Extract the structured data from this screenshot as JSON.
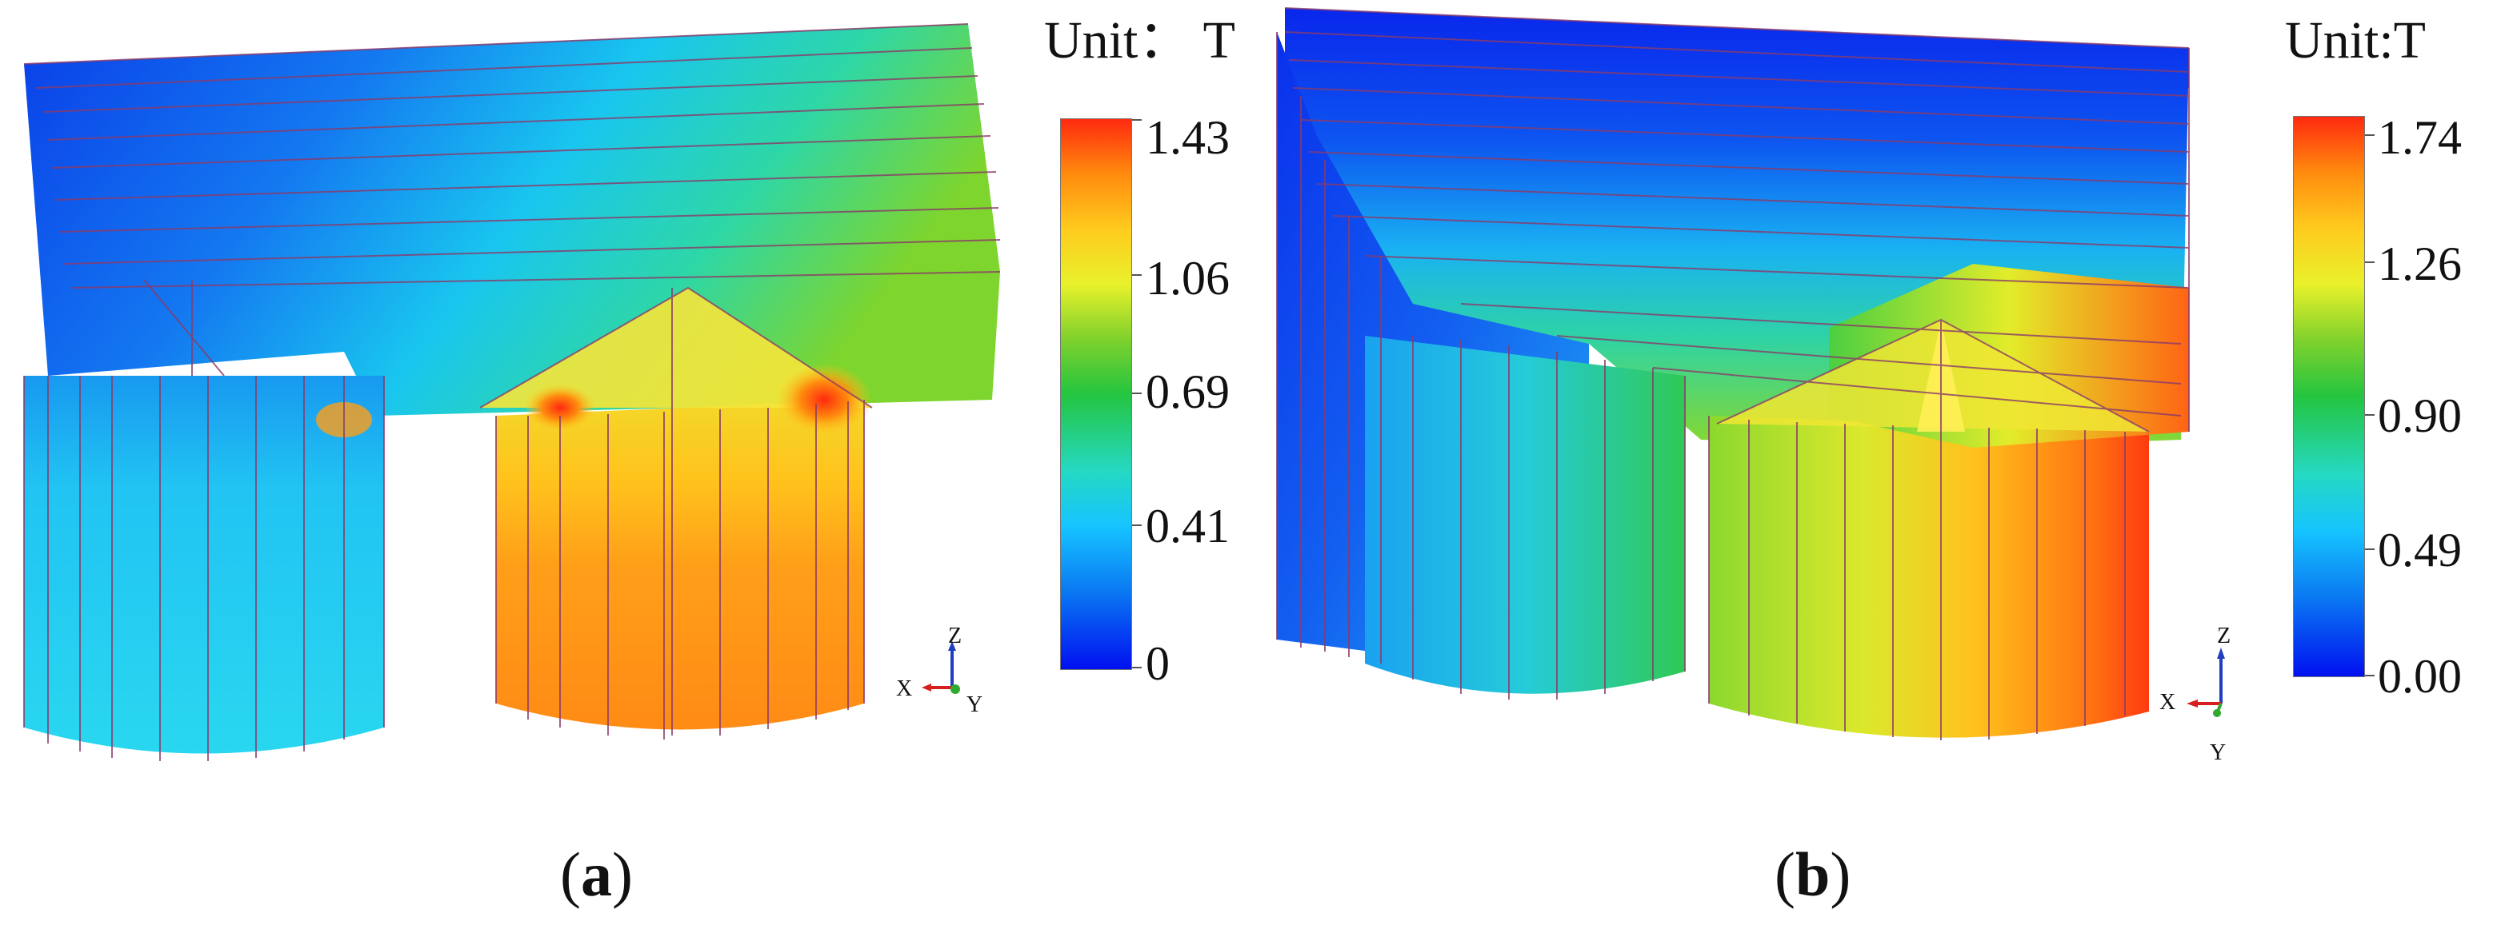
{
  "panels": [
    {
      "id": "a",
      "unit_title": "Unit： T",
      "colorbar_ticks": [
        "1.43",
        "1.06",
        "0.69",
        "0.41",
        "0"
      ],
      "axes": {
        "z": "Z",
        "x": "X",
        "y": "Y"
      },
      "caption_open": "(",
      "caption_letter": "a",
      "caption_close": ")"
    },
    {
      "id": "b",
      "unit_title": "Unit:T",
      "colorbar_ticks": [
        "1.74",
        "1.26",
        "0.90",
        "0.49",
        "0.00"
      ],
      "axes": {
        "z": "Z",
        "x": "X",
        "y": "Y"
      },
      "caption_open": "(",
      "caption_letter": "b",
      "caption_close": ")"
    }
  ],
  "colors": {
    "scale_min": "#0010f0",
    "scale_low": "#16c4ff",
    "scale_mid": "#24c540",
    "scale_high": "#ffcb1d",
    "scale_max": "#ff2a0f",
    "mesh_line": "#8a3b6a",
    "axis_x": "#d62020",
    "axis_y": "#2faa2f",
    "axis_z": "#1f3fbf"
  },
  "icons": [
    "axis-triad-icon"
  ]
}
